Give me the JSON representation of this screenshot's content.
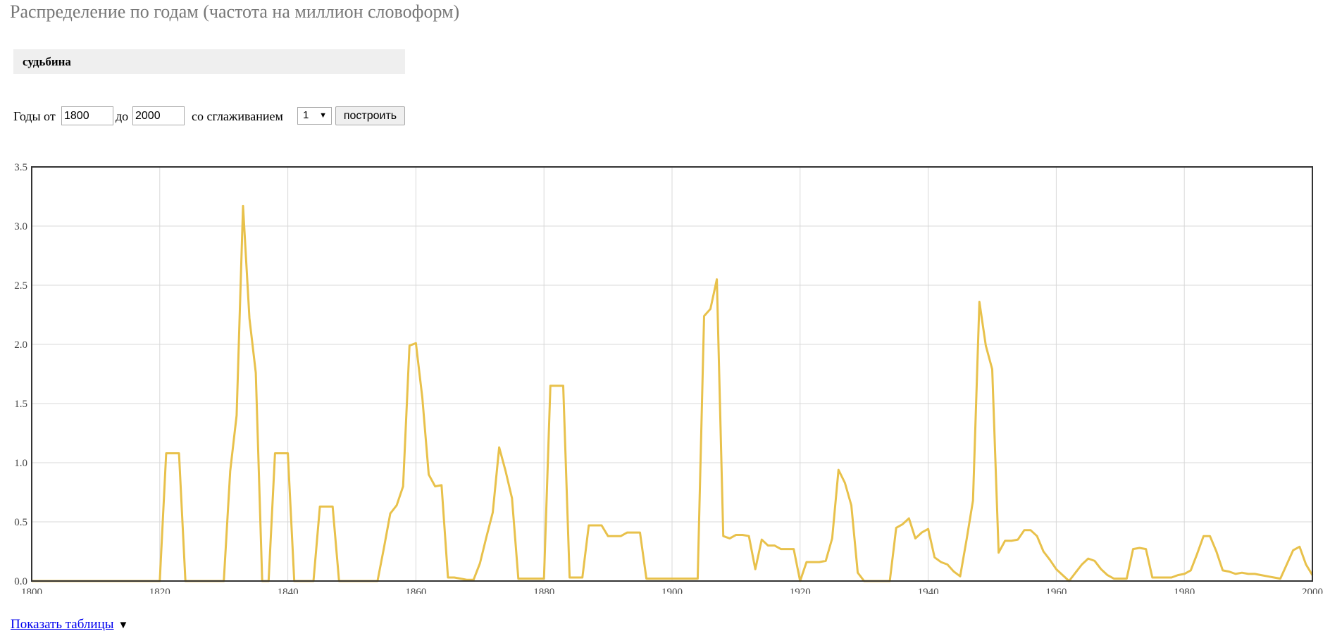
{
  "page": {
    "title": "Распределение по годам (частота на миллион словоформ)"
  },
  "query": {
    "word": "судьбина"
  },
  "controls": {
    "years_from_label": "Годы от",
    "year_from": "1800",
    "to_label": "до",
    "year_to": "2000",
    "smoothing_label": "со сглаживанием",
    "smoothing_value": "1",
    "build_button": "построить"
  },
  "footer": {
    "show_tables_link": "Показать таблицы",
    "toggle_icon": "▼"
  },
  "colors": {
    "line": "#e8c14b",
    "grid": "#d8d8d8",
    "axis": "#333333"
  },
  "chart_data": {
    "type": "line",
    "title": "",
    "xlabel": "",
    "ylabel": "",
    "xlim": [
      1800,
      2000
    ],
    "ylim": [
      0,
      3.5
    ],
    "xticks": [
      1800,
      1820,
      1840,
      1860,
      1880,
      1900,
      1920,
      1940,
      1960,
      1980,
      2000
    ],
    "yticks": [
      0.0,
      0.5,
      1.0,
      1.5,
      2.0,
      2.5,
      3.0,
      3.5
    ],
    "grid": true,
    "legend": "none",
    "series": [
      {
        "name": "",
        "x": [
          1800,
          1801,
          1802,
          1803,
          1804,
          1805,
          1806,
          1807,
          1808,
          1809,
          1810,
          1811,
          1812,
          1813,
          1814,
          1815,
          1816,
          1817,
          1818,
          1819,
          1820,
          1821,
          1822,
          1823,
          1824,
          1825,
          1826,
          1827,
          1828,
          1829,
          1830,
          1831,
          1832,
          1833,
          1834,
          1835,
          1836,
          1837,
          1838,
          1839,
          1840,
          1841,
          1842,
          1843,
          1844,
          1845,
          1846,
          1847,
          1848,
          1849,
          1850,
          1851,
          1852,
          1853,
          1854,
          1855,
          1856,
          1857,
          1858,
          1859,
          1860,
          1861,
          1862,
          1863,
          1864,
          1865,
          1866,
          1867,
          1868,
          1869,
          1870,
          1871,
          1872,
          1873,
          1874,
          1875,
          1876,
          1877,
          1878,
          1879,
          1880,
          1881,
          1882,
          1883,
          1884,
          1885,
          1886,
          1887,
          1888,
          1889,
          1890,
          1891,
          1892,
          1893,
          1894,
          1895,
          1896,
          1897,
          1898,
          1899,
          1900,
          1901,
          1902,
          1903,
          1904,
          1905,
          1906,
          1907,
          1908,
          1909,
          1910,
          1911,
          1912,
          1913,
          1914,
          1915,
          1916,
          1917,
          1918,
          1919,
          1920,
          1921,
          1922,
          1923,
          1924,
          1925,
          1926,
          1927,
          1928,
          1929,
          1930,
          1931,
          1932,
          1933,
          1934,
          1935,
          1936,
          1937,
          1938,
          1939,
          1940,
          1941,
          1942,
          1943,
          1944,
          1945,
          1946,
          1947,
          1948,
          1949,
          1950,
          1951,
          1952,
          1953,
          1954,
          1955,
          1956,
          1957,
          1958,
          1959,
          1960,
          1961,
          1962,
          1963,
          1964,
          1965,
          1966,
          1967,
          1968,
          1969,
          1970,
          1971,
          1972,
          1973,
          1974,
          1975,
          1976,
          1977,
          1978,
          1979,
          1980,
          1981,
          1982,
          1983,
          1984,
          1985,
          1986,
          1987,
          1988,
          1989,
          1990,
          1991,
          1992,
          1993,
          1994,
          1995,
          1996,
          1997,
          1998,
          1999,
          2000
        ],
        "values": [
          0,
          0,
          0,
          0,
          0,
          0,
          0,
          0,
          0,
          0,
          0,
          0,
          0,
          0,
          0,
          0,
          0,
          0,
          0,
          0,
          0,
          1.08,
          1.08,
          1.08,
          0,
          0,
          0,
          0,
          0,
          0,
          0,
          0.93,
          1.4,
          3.17,
          2.22,
          1.76,
          0,
          0,
          1.08,
          1.08,
          1.08,
          0,
          0,
          0,
          0,
          0.63,
          0.63,
          0.63,
          0,
          0,
          0,
          0,
          0,
          0,
          0,
          0.28,
          0.57,
          0.64,
          0.8,
          1.99,
          2.01,
          1.55,
          0.9,
          0.8,
          0.81,
          0.03,
          0.03,
          0.02,
          0.01,
          0.01,
          0.15,
          0.37,
          0.58,
          1.13,
          0.93,
          0.7,
          0.02,
          0.02,
          0.02,
          0.02,
          0.02,
          1.65,
          1.65,
          1.65,
          0.03,
          0.03,
          0.03,
          0.47,
          0.47,
          0.47,
          0.38,
          0.38,
          0.38,
          0.41,
          0.41,
          0.41,
          0.02,
          0.02,
          0.02,
          0.02,
          0.02,
          0.02,
          0.02,
          0.02,
          0.02,
          2.24,
          2.3,
          2.55,
          0.38,
          0.36,
          0.39,
          0.39,
          0.38,
          0.1,
          0.35,
          0.3,
          0.3,
          0.27,
          0.27,
          0.27,
          0,
          0.16,
          0.16,
          0.16,
          0.17,
          0.36,
          0.94,
          0.83,
          0.64,
          0.07,
          0,
          0,
          0,
          0,
          0,
          0.45,
          0.48,
          0.53,
          0.36,
          0.41,
          0.44,
          0.2,
          0.16,
          0.14,
          0.08,
          0.04,
          0.35,
          0.68,
          2.36,
          1.99,
          1.79,
          0.24,
          0.34,
          0.34,
          0.35,
          0.43,
          0.43,
          0.38,
          0.25,
          0.18,
          0.1,
          0.05,
          0,
          0.07,
          0.14,
          0.19,
          0.17,
          0.1,
          0.05,
          0.02,
          0.02,
          0.02,
          0.27,
          0.28,
          0.27,
          0.03,
          0.03,
          0.03,
          0.03,
          0.05,
          0.06,
          0.09,
          0.23,
          0.38,
          0.38,
          0.25,
          0.09,
          0.08,
          0.06,
          0.07,
          0.06,
          0.06,
          0.05,
          0.04,
          0.03,
          0.02,
          0.14,
          0.26,
          0.29,
          0.14,
          0.05
        ]
      }
    ]
  }
}
